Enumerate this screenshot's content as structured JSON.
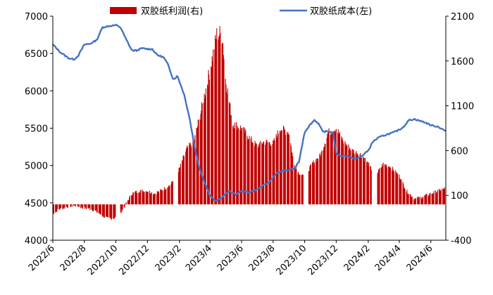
{
  "chart_data": {
    "type": "bar+line",
    "title": "",
    "legend": {
      "placement": "top",
      "entries": [
        {
          "name": "双胶纸利润(右)",
          "kind": "bar",
          "color": "#C00000"
        },
        {
          "name": "双胶纸成本(左)",
          "kind": "line",
          "color": "#4472C4"
        }
      ]
    },
    "left_axis": {
      "label": "",
      "min": 4000,
      "max": 7000,
      "ticks": [
        4000,
        4500,
        5000,
        5500,
        6000,
        6500,
        7000
      ]
    },
    "right_axis": {
      "label": "",
      "min": -400,
      "max": 2100,
      "ticks": [
        -400,
        100,
        600,
        1100,
        1600,
        2100
      ]
    },
    "x_axis": {
      "label": "",
      "start": "2022-06-01",
      "end": "2024-06-30",
      "tick_labels": [
        "2022/6",
        "2022/8",
        "2022/10",
        "2022/12",
        "2023/2",
        "2023/4",
        "2023/6",
        "2023/8",
        "2023/10",
        "2023/12",
        "2024/2",
        "2024/4",
        "2024/6"
      ],
      "tick_dates": [
        "2022-06-01",
        "2022-08-01",
        "2022-10-01",
        "2022-12-01",
        "2023-02-01",
        "2023-04-01",
        "2023-06-01",
        "2023-08-01",
        "2023-10-01",
        "2023-12-01",
        "2024-02-01",
        "2024-04-01",
        "2024-06-01"
      ]
    },
    "series": [
      {
        "name": "双胶纸成本(左)",
        "axis": "left",
        "type": "line",
        "color": "#4472C4",
        "points": [
          [
            "2022-06-01",
            6620
          ],
          [
            "2022-06-15",
            6520
          ],
          [
            "2022-07-01",
            6440
          ],
          [
            "2022-07-12",
            6420
          ],
          [
            "2022-07-20",
            6470
          ],
          [
            "2022-08-01",
            6620
          ],
          [
            "2022-08-12",
            6630
          ],
          [
            "2022-08-25",
            6680
          ],
          [
            "2022-09-05",
            6850
          ],
          [
            "2022-09-20",
            6870
          ],
          [
            "2022-10-01",
            6880
          ],
          [
            "2022-10-10",
            6850
          ],
          [
            "2022-10-20",
            6700
          ],
          [
            "2022-11-01",
            6540
          ],
          [
            "2022-11-10",
            6540
          ],
          [
            "2022-11-20",
            6570
          ],
          [
            "2022-12-01",
            6560
          ],
          [
            "2022-12-10",
            6560
          ],
          [
            "2022-12-20",
            6480
          ],
          [
            "2023-01-01",
            6450
          ],
          [
            "2023-01-10",
            6350
          ],
          [
            "2023-01-20",
            6150
          ],
          [
            "2023-01-28",
            6200
          ],
          [
            "2023-02-10",
            5950
          ],
          [
            "2023-02-20",
            5650
          ],
          [
            "2023-03-01",
            5300
          ],
          [
            "2023-03-10",
            5000
          ],
          [
            "2023-03-20",
            4800
          ],
          [
            "2023-04-01",
            4600
          ],
          [
            "2023-04-12",
            4520
          ],
          [
            "2023-04-22",
            4560
          ],
          [
            "2023-05-01",
            4620
          ],
          [
            "2023-05-10",
            4660
          ],
          [
            "2023-05-20",
            4610
          ],
          [
            "2023-06-01",
            4660
          ],
          [
            "2023-06-15",
            4640
          ],
          [
            "2023-07-01",
            4680
          ],
          [
            "2023-07-15",
            4740
          ],
          [
            "2023-07-25",
            4780
          ],
          [
            "2023-08-05",
            4880
          ],
          [
            "2023-08-15",
            4920
          ],
          [
            "2023-08-25",
            4930
          ],
          [
            "2023-09-05",
            4950
          ],
          [
            "2023-09-12",
            4960
          ],
          [
            "2023-09-20",
            5050
          ],
          [
            "2023-10-01",
            5450
          ],
          [
            "2023-10-12",
            5550
          ],
          [
            "2023-10-20",
            5610
          ],
          [
            "2023-10-28",
            5560
          ],
          [
            "2023-11-05",
            5450
          ],
          [
            "2023-11-15",
            5460
          ],
          [
            "2023-11-25",
            5440
          ],
          [
            "2023-12-01",
            5160
          ],
          [
            "2023-12-10",
            5130
          ],
          [
            "2023-12-20",
            5130
          ],
          [
            "2024-01-01",
            5100
          ],
          [
            "2024-01-10",
            5090
          ],
          [
            "2024-01-20",
            5130
          ],
          [
            "2024-02-01",
            5200
          ],
          [
            "2024-02-10",
            5320
          ],
          [
            "2024-02-20",
            5370
          ],
          [
            "2024-03-01",
            5400
          ],
          [
            "2024-03-10",
            5420
          ],
          [
            "2024-03-20",
            5440
          ],
          [
            "2024-04-01",
            5480
          ],
          [
            "2024-04-08",
            5510
          ],
          [
            "2024-04-20",
            5610
          ],
          [
            "2024-05-01",
            5620
          ],
          [
            "2024-05-10",
            5600
          ],
          [
            "2024-05-20",
            5580
          ],
          [
            "2024-06-01",
            5540
          ],
          [
            "2024-06-15",
            5520
          ],
          [
            "2024-06-30",
            5460
          ]
        ]
      },
      {
        "name": "双胶纸利润(右)",
        "axis": "right",
        "type": "bar",
        "color": "#C00000",
        "points": [
          [
            "2022-06-01",
            -100
          ],
          [
            "2022-06-15",
            -50
          ],
          [
            "2022-07-01",
            -20
          ],
          [
            "2022-07-15",
            -10
          ],
          [
            "2022-08-01",
            -40
          ],
          [
            "2022-08-15",
            -50
          ],
          [
            "2022-09-01",
            -110
          ],
          [
            "2022-09-15",
            -160
          ],
          [
            "2022-10-01",
            -150
          ],
          [
            "2022-10-15",
            -50
          ],
          [
            "2022-11-01",
            120
          ],
          [
            "2022-11-15",
            150
          ],
          [
            "2022-12-01",
            150
          ],
          [
            "2022-12-15",
            120
          ],
          [
            "2023-01-01",
            170
          ],
          [
            "2023-01-15",
            220
          ],
          [
            "2023-02-01",
            400
          ],
          [
            "2023-02-15",
            620
          ],
          [
            "2023-03-01",
            700
          ],
          [
            "2023-03-15",
            1050
          ],
          [
            "2023-04-01",
            1500
          ],
          [
            "2023-04-15",
            1920
          ],
          [
            "2023-04-25",
            1880
          ],
          [
            "2023-05-01",
            1400
          ],
          [
            "2023-05-15",
            900
          ],
          [
            "2023-06-01",
            850
          ],
          [
            "2023-06-15",
            750
          ],
          [
            "2023-07-01",
            650
          ],
          [
            "2023-07-15",
            700
          ],
          [
            "2023-08-01",
            680
          ],
          [
            "2023-08-15",
            850
          ],
          [
            "2023-09-01",
            800
          ],
          [
            "2023-09-10",
            450
          ],
          [
            "2023-09-20",
            350
          ],
          [
            "2023-10-01",
            300
          ],
          [
            "2023-10-15",
            450
          ],
          [
            "2023-11-01",
            550
          ],
          [
            "2023-11-15",
            800
          ],
          [
            "2023-12-01",
            850
          ],
          [
            "2023-12-15",
            700
          ],
          [
            "2024-01-01",
            600
          ],
          [
            "2024-01-20",
            550
          ],
          [
            "2024-02-01",
            450
          ],
          [
            "2024-02-15",
            320
          ],
          [
            "2024-03-01",
            450
          ],
          [
            "2024-03-15",
            420
          ],
          [
            "2024-04-01",
            320
          ],
          [
            "2024-04-15",
            150
          ],
          [
            "2024-05-01",
            60
          ],
          [
            "2024-05-15",
            80
          ],
          [
            "2024-06-01",
            120
          ],
          [
            "2024-06-30",
            180
          ]
        ]
      }
    ]
  }
}
